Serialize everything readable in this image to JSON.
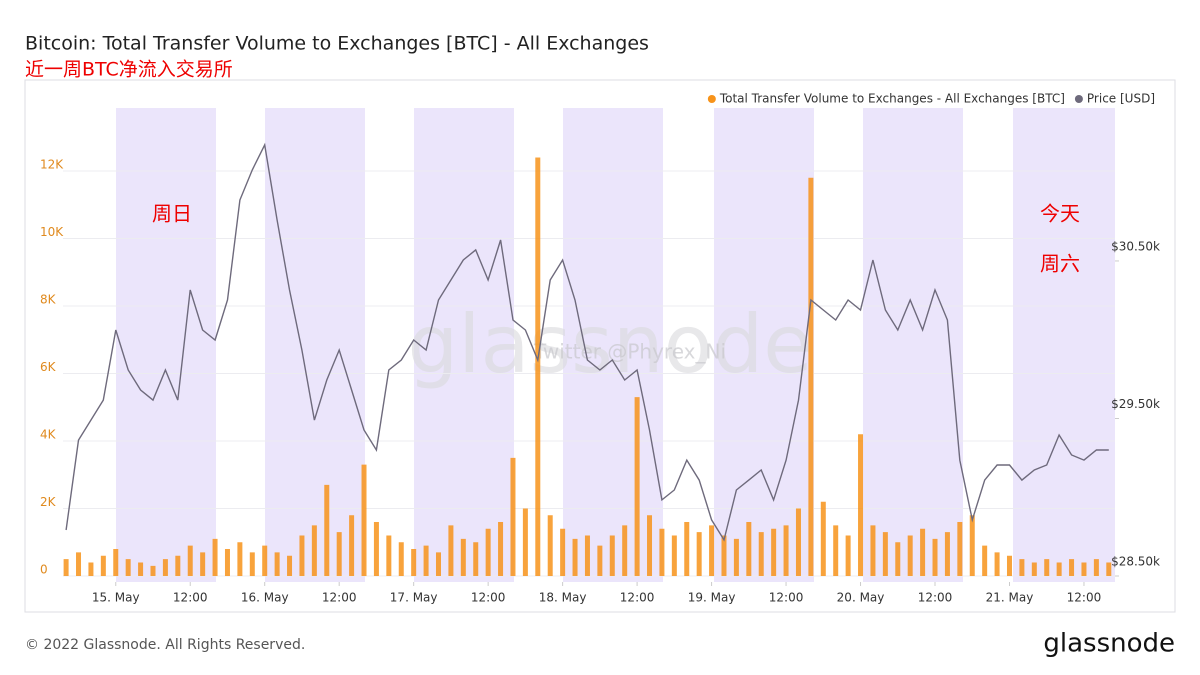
{
  "chart_data": {
    "type": "combo",
    "title": "Bitcoin: Total Transfer Volume to Exchanges [BTC] - All Exchanges",
    "subtitle": "近一周BTC净流入交易所",
    "annotations": [
      "周日",
      "今天",
      "周六"
    ],
    "watermarks": [
      "glassnode",
      "Twitter @Phyrex_Ni"
    ],
    "footer": "© 2022 Glassnode. All Rights Reserved.",
    "logo": "glassnode",
    "legend": "top-right",
    "grid": true,
    "x": [
      "14 May 16:00",
      "14 May 18:00",
      "14 May 20:00",
      "14 May 22:00",
      "15 May 00:00",
      "15 May 02:00",
      "15 May 04:00",
      "15 May 06:00",
      "15 May 08:00",
      "15 May 10:00",
      "15 May 12:00",
      "15 May 14:00",
      "15 May 16:00",
      "15 May 18:00",
      "15 May 20:00",
      "15 May 22:00",
      "16 May 00:00",
      "16 May 02:00",
      "16 May 04:00",
      "16 May 06:00",
      "16 May 08:00",
      "16 May 10:00",
      "16 May 12:00",
      "16 May 14:00",
      "16 May 16:00",
      "16 May 18:00",
      "16 May 20:00",
      "16 May 22:00",
      "17 May 00:00",
      "17 May 02:00",
      "17 May 04:00",
      "17 May 06:00",
      "17 May 08:00",
      "17 May 10:00",
      "17 May 12:00",
      "17 May 14:00",
      "17 May 16:00",
      "17 May 18:00",
      "17 May 20:00",
      "17 May 22:00",
      "18 May 00:00",
      "18 May 02:00",
      "18 May 04:00",
      "18 May 06:00",
      "18 May 08:00",
      "18 May 10:00",
      "18 May 12:00",
      "18 May 14:00",
      "18 May 16:00",
      "18 May 18:00",
      "18 May 20:00",
      "18 May 22:00",
      "19 May 00:00",
      "19 May 02:00",
      "19 May 04:00",
      "19 May 06:00",
      "19 May 08:00",
      "19 May 10:00",
      "19 May 12:00",
      "19 May 14:00",
      "19 May 16:00",
      "19 May 18:00",
      "19 May 20:00",
      "19 May 22:00",
      "20 May 00:00",
      "20 May 02:00",
      "20 May 04:00",
      "20 May 06:00",
      "20 May 08:00",
      "20 May 10:00",
      "20 May 12:00",
      "20 May 14:00",
      "20 May 16:00",
      "20 May 18:00",
      "20 May 20:00",
      "20 May 22:00",
      "21 May 00:00",
      "21 May 02:00",
      "21 May 04:00",
      "21 May 06:00",
      "21 May 08:00",
      "21 May 10:00",
      "21 May 12:00",
      "21 May 14:00",
      "21 May 16:00"
    ],
    "xlim": [
      "14 May 15:30",
      "21 May 17:00"
    ],
    "xticks": [
      {
        "value": "15 May 00:00",
        "label": "15. May"
      },
      {
        "value": "15 May 12:00",
        "label": "12:00"
      },
      {
        "value": "16 May 00:00",
        "label": "16. May"
      },
      {
        "value": "16 May 12:00",
        "label": "12:00"
      },
      {
        "value": "17 May 00:00",
        "label": "17. May"
      },
      {
        "value": "17 May 12:00",
        "label": "12:00"
      },
      {
        "value": "18 May 00:00",
        "label": "18. May"
      },
      {
        "value": "18 May 12:00",
        "label": "12:00"
      },
      {
        "value": "19 May 00:00",
        "label": "19. May"
      },
      {
        "value": "19 May 12:00",
        "label": "12:00"
      },
      {
        "value": "20 May 00:00",
        "label": "20. May"
      },
      {
        "value": "20 May 12:00",
        "label": "12:00"
      },
      {
        "value": "21 May 00:00",
        "label": "21. May"
      },
      {
        "value": "21 May 12:00",
        "label": "12:00"
      }
    ],
    "ylim": [
      -178,
      13867
    ],
    "yticks": [
      0,
      {
        "value": 2000,
        "label": "2K"
      },
      {
        "value": 4000,
        "label": "4K"
      },
      {
        "value": 6000,
        "label": "6K"
      },
      {
        "value": 8000,
        "label": "8K"
      },
      {
        "value": 10000,
        "label": "10K"
      },
      {
        "value": 12000,
        "label": "12K"
      }
    ],
    "y2lim": [
      28462,
      31471
    ],
    "y2ticks": [
      {
        "value": 28500,
        "label": "$28.50k"
      },
      {
        "value": 29500,
        "label": "$29.50k"
      },
      {
        "value": 30500,
        "label": "$30.50k"
      }
    ],
    "series": [
      {
        "name": "Total Transfer Volume to Exchanges - All Exchanges [BTC]",
        "type": "bar",
        "color": "#f7931a",
        "values": [
          500,
          700,
          400,
          600,
          800,
          500,
          400,
          300,
          500,
          600,
          900,
          700,
          1100,
          800,
          1000,
          700,
          900,
          700,
          600,
          1200,
          1500,
          2700,
          1300,
          1800,
          3300,
          1600,
          1200,
          1000,
          800,
          900,
          700,
          1500,
          1100,
          1000,
          1400,
          1600,
          3500,
          2000,
          12400,
          1800,
          1400,
          1100,
          1200,
          900,
          1200,
          1500,
          5300,
          1800,
          1400,
          1200,
          1600,
          1300,
          1500,
          1200,
          1100,
          1600,
          1300,
          1400,
          1500,
          2000,
          11800,
          2200,
          1500,
          1200,
          4200,
          1500,
          1300,
          1000,
          1200,
          1400,
          1100,
          1300,
          1600,
          1800,
          900,
          700,
          600,
          500,
          400,
          500,
          400,
          500,
          400,
          500,
          400
        ]
      },
      {
        "name": "Price [USD]",
        "type": "line",
        "axis": "y2",
        "color": "#6e6a7c",
        "values": [
          28792,
          29363,
          29490,
          29617,
          30062,
          29808,
          29681,
          29617,
          29808,
          29617,
          30316,
          30062,
          29998,
          30252,
          30887,
          31078,
          31237,
          30760,
          30316,
          29935,
          29490,
          29744,
          29935,
          29681,
          29427,
          29300,
          29808,
          29871,
          29998,
          29935,
          30252,
          30379,
          30506,
          30570,
          30379,
          30633,
          30125,
          30062,
          29871,
          30379,
          30506,
          30252,
          29871,
          29808,
          29871,
          29744,
          29808,
          29427,
          28983,
          29046,
          29236,
          29109,
          28856,
          28729,
          29046,
          29109,
          29173,
          28983,
          29236,
          29617,
          30252,
          30189,
          30125,
          30252,
          30189,
          30506,
          30189,
          30062,
          30252,
          30062,
          30316,
          30125,
          29236,
          28856,
          29109,
          29205,
          29205,
          29109,
          29173,
          29205,
          29395,
          29268,
          29236,
          29300,
          29300
        ]
      }
    ]
  }
}
